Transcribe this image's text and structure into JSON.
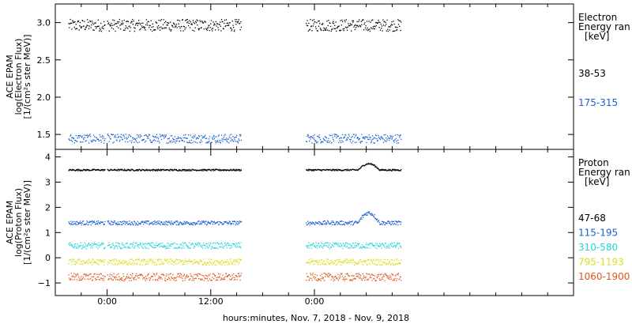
{
  "chart_data": [
    {
      "type": "scatter",
      "panel": "electron",
      "ylabel_lines": [
        "ACE EPAM",
        "log(Electron Flux)",
        "[1/(cm²s ster MeV)]"
      ],
      "ylim": [
        1.3,
        3.25
      ],
      "yticks": [
        1.5,
        2.0,
        2.5,
        3.0
      ],
      "ytick_labels": [
        "1.5",
        "2.0",
        "2.5",
        "3.0"
      ],
      "legend_title_lines": [
        "Electron",
        "Energy ran",
        "[keV]"
      ],
      "series": [
        {
          "name": "38-53",
          "color": "#000000",
          "level": 2.97,
          "noise": 0.08
        },
        {
          "name": "175-315",
          "color": "#1a5fd1",
          "level": 1.45,
          "noise": 0.06
        }
      ]
    },
    {
      "type": "scatter",
      "panel": "proton",
      "ylabel_lines": [
        "ACE EPAM",
        "log(Proton Flux)",
        "[1/(cm²s ster MeV)]"
      ],
      "ylim": [
        -1.5,
        4.3
      ],
      "yticks": [
        -1,
        0,
        1,
        2,
        3,
        4
      ],
      "ytick_labels": [
        "−1",
        "0",
        "1",
        "2",
        "3",
        "4"
      ],
      "legend_title_lines": [
        "Proton",
        "Energy ran",
        "[keV]"
      ],
      "series": [
        {
          "name": "47-68",
          "color": "#000000",
          "level": 3.5,
          "noise": 0.03
        },
        {
          "name": "115-195",
          "color": "#1a5fd1",
          "level": 1.4,
          "noise": 0.08
        },
        {
          "name": "310-580",
          "color": "#22d6d6",
          "level": 0.5,
          "noise": 0.12
        },
        {
          "name": "795-1193",
          "color": "#d8e020",
          "level": -0.15,
          "noise": 0.12
        },
        {
          "name": "1060-1900",
          "color": "#e0561a",
          "level": -0.75,
          "noise": 0.15
        }
      ]
    }
  ],
  "xaxis": {
    "label": "hours:minutes, Nov.  7, 2018 - Nov.  9, 2018",
    "range_hours": [
      -6,
      54
    ],
    "tick_hours": [
      0,
      12,
      24
    ],
    "tick_labels": [
      "0:00",
      "12:00",
      "0:00"
    ],
    "minor_every_hours": 3,
    "data_segments_hours": [
      [
        -4.5,
        -0.3
      ],
      [
        0.0,
        15.5
      ],
      [
        23.0,
        34.0
      ]
    ]
  }
}
